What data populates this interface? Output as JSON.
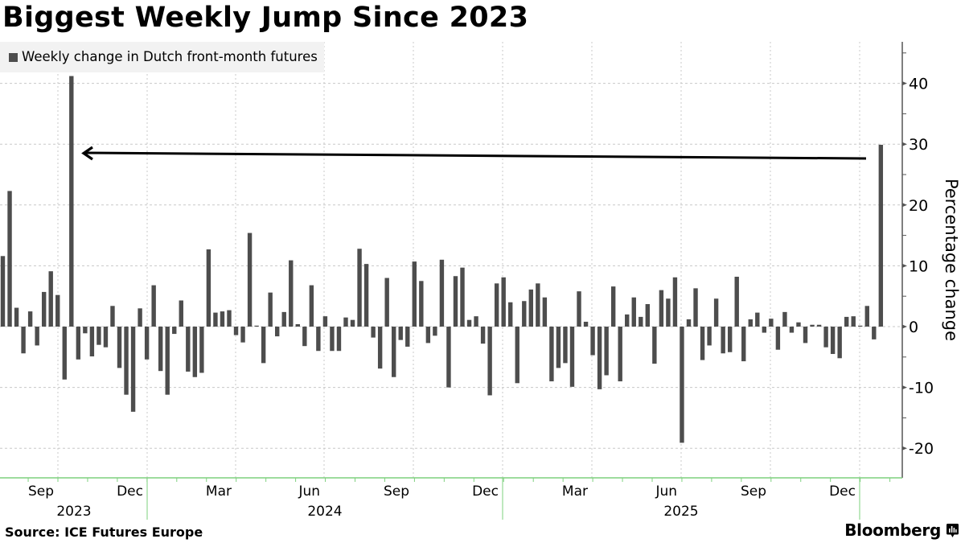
{
  "header": {
    "title": "Biggest Weekly Jump Since 2023"
  },
  "legend": {
    "items": [
      {
        "label": "Weekly change in Dutch front-month futures",
        "color": "#4d4d4d",
        "icon": "square-swatch-icon"
      }
    ]
  },
  "footer": {
    "source": "Source: ICE Futures Europe",
    "brand": "Bloomberg",
    "brand_icon": "bloomberg-chart-icon"
  },
  "colors": {
    "bar": "#4d4d4d",
    "axis": "#555555",
    "x_axis": "#7ed07e",
    "grid": "#c8c8c8",
    "legend_bg": "#f2f2f2",
    "arrow": "#000000"
  },
  "chart_data": {
    "type": "bar",
    "title": "Biggest Weekly Jump Since 2023",
    "xlabel": "",
    "ylabel": "Percentage change",
    "ylim": [
      -25,
      47
    ],
    "yticks": [
      -20,
      -10,
      0,
      10,
      20,
      30,
      40
    ],
    "grid": true,
    "legend_position": "top-left",
    "x_month_labels": [
      "Sep",
      "Dec",
      "Mar",
      "Jun",
      "Sep",
      "Dec",
      "Mar",
      "Jun",
      "Sep",
      "Dec"
    ],
    "x_year_labels": [
      "2023",
      "2024",
      "2025"
    ],
    "annotation": "Arrow from latest week (~30%) pointing left to the 2023 spike (~41%)",
    "series": [
      {
        "name": "Weekly change in Dutch front-month futures",
        "values": [
          11.6,
          22.3,
          3.1,
          -4.4,
          2.5,
          -3.1,
          5.7,
          9.1,
          5.2,
          -8.7,
          41.2,
          -5.4,
          -1.1,
          -4.9,
          -3.0,
          -3.4,
          3.4,
          -6.8,
          -11.2,
          -14.0,
          3.0,
          -5.4,
          6.8,
          -7.3,
          -11.2,
          -1.2,
          4.3,
          -7.4,
          -8.3,
          -7.6,
          12.7,
          2.3,
          2.5,
          2.7,
          -1.4,
          -2.6,
          15.4,
          0.1,
          -6.0,
          5.6,
          -1.6,
          2.4,
          10.9,
          0.4,
          -3.2,
          6.8,
          -4.0,
          1.7,
          -4.0,
          -4.0,
          1.5,
          1.1,
          12.8,
          10.3,
          -1.8,
          -6.9,
          8.0,
          -8.3,
          -2.2,
          -3.3,
          10.7,
          7.5,
          -2.7,
          -1.5,
          11.0,
          -10.0,
          8.3,
          9.7,
          1.1,
          1.7,
          -2.8,
          -11.3,
          7.1,
          8.1,
          4.0,
          -9.3,
          4.2,
          6.1,
          7.1,
          4.8,
          -9.0,
          -6.8,
          -6.0,
          -9.9,
          5.8,
          0.8,
          -4.7,
          -10.3,
          -8.0,
          6.6,
          -9.0,
          2.0,
          4.8,
          1.6,
          3.7,
          -6.1,
          6.0,
          4.6,
          8.1,
          -19.1,
          1.2,
          6.3,
          -5.5,
          -3.1,
          4.6,
          -4.4,
          -4.2,
          8.2,
          -5.7,
          1.2,
          2.3,
          -1.0,
          1.3,
          -3.8,
          2.4,
          -1.0,
          0.7,
          -2.7,
          0.3,
          0.3,
          -3.4,
          -4.5,
          -5.2,
          1.6,
          1.7,
          0.1,
          3.4,
          -2.1,
          29.9
        ]
      }
    ]
  }
}
